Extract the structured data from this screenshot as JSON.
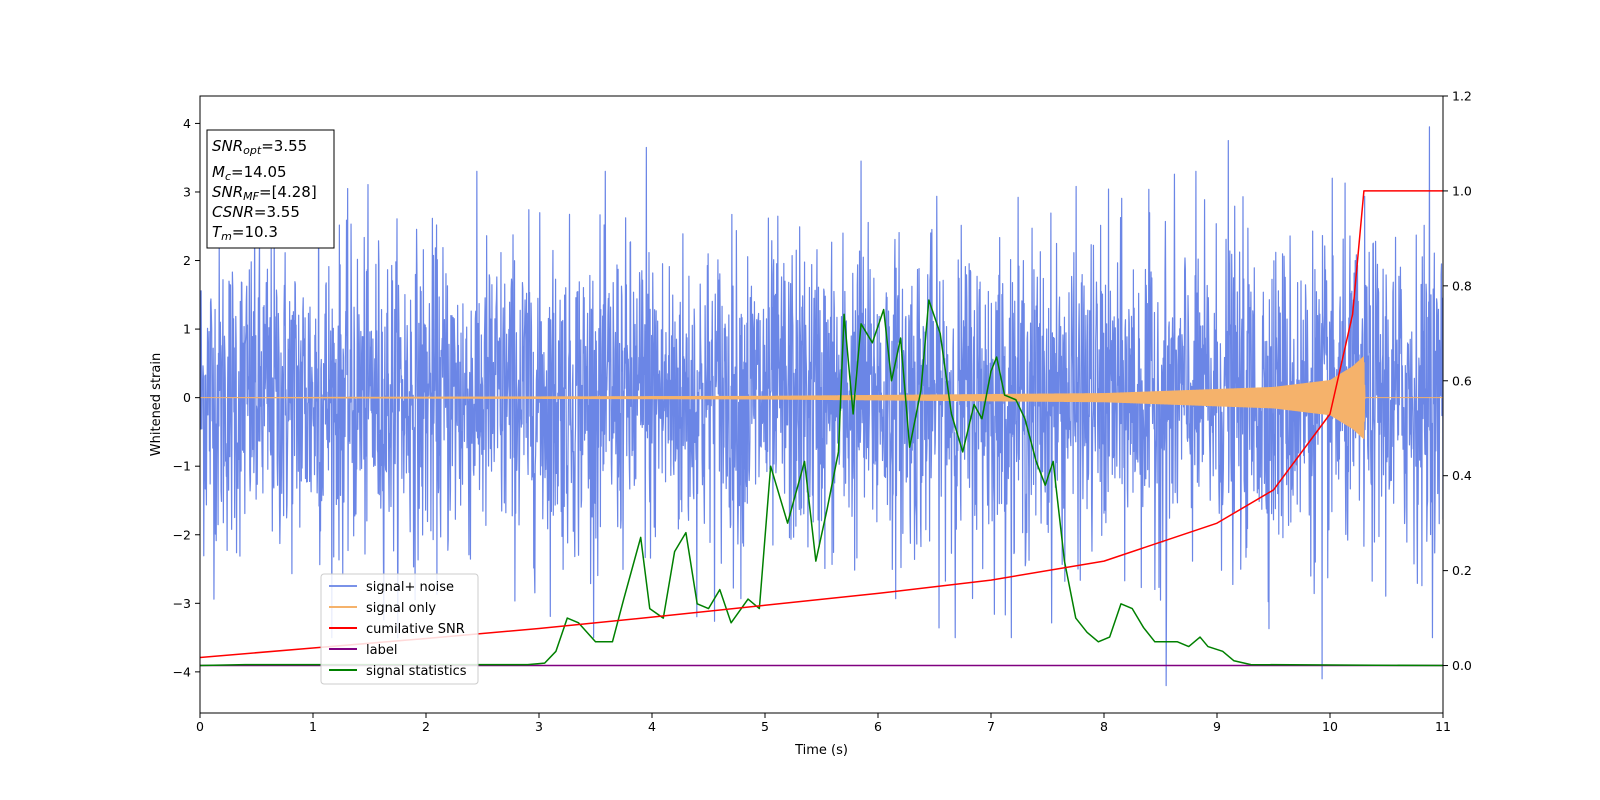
{
  "chart_data": {
    "type": "line",
    "xlabel": "Time (s)",
    "ylabel_left": "Whitened strain",
    "xlim": [
      0,
      11
    ],
    "ylim_left": [
      -4.6,
      4.4
    ],
    "ylim_right": [
      -0.1,
      1.2
    ],
    "x_ticks": [
      "0",
      "1",
      "2",
      "3",
      "4",
      "5",
      "6",
      "7",
      "8",
      "9",
      "10",
      "11"
    ],
    "y_left_ticks": [
      "4",
      "3",
      "2",
      "1",
      "0",
      "−1",
      "−2",
      "−3",
      "−4"
    ],
    "y_right_ticks": [
      "1.2",
      "1.0",
      "0.8",
      "0.6",
      "0.4",
      "0.2",
      "0.0"
    ],
    "grid": false,
    "legend_position": "lower-left",
    "annotation": {
      "snr_opt": {
        "main": "SNR",
        "sub": "opt",
        "value": "=3.55"
      },
      "mc": {
        "main": "M",
        "sub": "c",
        "value": "=14.05"
      },
      "snr_mf": {
        "main": "SNR",
        "sub": "MF",
        "value": "=[4.28]"
      },
      "csnr": {
        "main": "CSNR",
        "value": "=3.55"
      },
      "tm": {
        "main": "T",
        "sub": "m",
        "value": "=10.3"
      }
    },
    "series": [
      {
        "name": "signal+ noise",
        "color": "#6b86e6",
        "axis": "left",
        "description_values": "whitened noise, std ≈ 1.1 over 0–11 s",
        "peak_values": [
          [
            1.05,
            3.25
          ],
          [
            3.95,
            3.65
          ],
          [
            5.85,
            3.45
          ],
          [
            9.1,
            3.75
          ],
          [
            10.88,
            3.95
          ],
          [
            8.55,
            -4.2
          ],
          [
            9.93,
            -4.1
          ]
        ]
      },
      {
        "name": "signal only",
        "color": "#f5b26b",
        "axis": "left",
        "points": [
          [
            0,
            0
          ],
          [
            5,
            0.02
          ],
          [
            8,
            0.06
          ],
          [
            9.5,
            0.15
          ],
          [
            10.0,
            0.25
          ],
          [
            10.2,
            0.45
          ],
          [
            10.3,
            0.6
          ],
          [
            10.31,
            0
          ],
          [
            11,
            0
          ]
        ]
      },
      {
        "name": "cumilative SNR",
        "color": "#ff0000",
        "axis": "right",
        "points": [
          [
            0,
            0.017
          ],
          [
            1,
            0.037
          ],
          [
            2,
            0.057
          ],
          [
            3,
            0.078
          ],
          [
            4,
            0.102
          ],
          [
            5,
            0.127
          ],
          [
            6,
            0.152
          ],
          [
            7,
            0.18
          ],
          [
            8,
            0.22
          ],
          [
            9,
            0.3
          ],
          [
            9.5,
            0.37
          ],
          [
            10.0,
            0.53
          ],
          [
            10.2,
            0.74
          ],
          [
            10.3,
            1.0
          ],
          [
            11,
            1.0
          ]
        ]
      },
      {
        "name": "label",
        "color": "#800080",
        "axis": "right",
        "points": [
          [
            0,
            0
          ],
          [
            11,
            0
          ]
        ]
      },
      {
        "name": "signal statistics",
        "color": "#008000",
        "axis": "right",
        "points": [
          [
            0,
            0.0
          ],
          [
            0.4,
            0.002
          ],
          [
            2.9,
            0.002
          ],
          [
            3.05,
            0.005
          ],
          [
            3.15,
            0.03
          ],
          [
            3.25,
            0.1
          ],
          [
            3.35,
            0.09
          ],
          [
            3.5,
            0.05
          ],
          [
            3.65,
            0.05
          ],
          [
            3.75,
            0.14
          ],
          [
            3.9,
            0.27
          ],
          [
            3.98,
            0.12
          ],
          [
            4.1,
            0.1
          ],
          [
            4.2,
            0.24
          ],
          [
            4.3,
            0.28
          ],
          [
            4.4,
            0.13
          ],
          [
            4.5,
            0.12
          ],
          [
            4.6,
            0.16
          ],
          [
            4.7,
            0.09
          ],
          [
            4.85,
            0.14
          ],
          [
            4.95,
            0.12
          ],
          [
            5.05,
            0.42
          ],
          [
            5.2,
            0.3
          ],
          [
            5.35,
            0.43
          ],
          [
            5.45,
            0.22
          ],
          [
            5.55,
            0.33
          ],
          [
            5.65,
            0.45
          ],
          [
            5.7,
            0.74
          ],
          [
            5.78,
            0.53
          ],
          [
            5.85,
            0.72
          ],
          [
            5.95,
            0.68
          ],
          [
            6.05,
            0.75
          ],
          [
            6.12,
            0.6
          ],
          [
            6.2,
            0.69
          ],
          [
            6.28,
            0.46
          ],
          [
            6.38,
            0.58
          ],
          [
            6.45,
            0.77
          ],
          [
            6.55,
            0.7
          ],
          [
            6.65,
            0.53
          ],
          [
            6.75,
            0.45
          ],
          [
            6.85,
            0.55
          ],
          [
            6.92,
            0.52
          ],
          [
            7.0,
            0.62
          ],
          [
            7.05,
            0.65
          ],
          [
            7.12,
            0.57
          ],
          [
            7.22,
            0.56
          ],
          [
            7.3,
            0.52
          ],
          [
            7.4,
            0.43
          ],
          [
            7.48,
            0.38
          ],
          [
            7.55,
            0.43
          ],
          [
            7.65,
            0.22
          ],
          [
            7.75,
            0.1
          ],
          [
            7.85,
            0.07
          ],
          [
            7.95,
            0.05
          ],
          [
            8.05,
            0.06
          ],
          [
            8.15,
            0.13
          ],
          [
            8.25,
            0.12
          ],
          [
            8.35,
            0.08
          ],
          [
            8.45,
            0.05
          ],
          [
            8.55,
            0.05
          ],
          [
            8.65,
            0.05
          ],
          [
            8.75,
            0.04
          ],
          [
            8.85,
            0.06
          ],
          [
            8.92,
            0.04
          ],
          [
            9.05,
            0.03
          ],
          [
            9.15,
            0.01
          ],
          [
            9.3,
            0.002
          ],
          [
            11,
            0.0
          ]
        ]
      }
    ]
  }
}
